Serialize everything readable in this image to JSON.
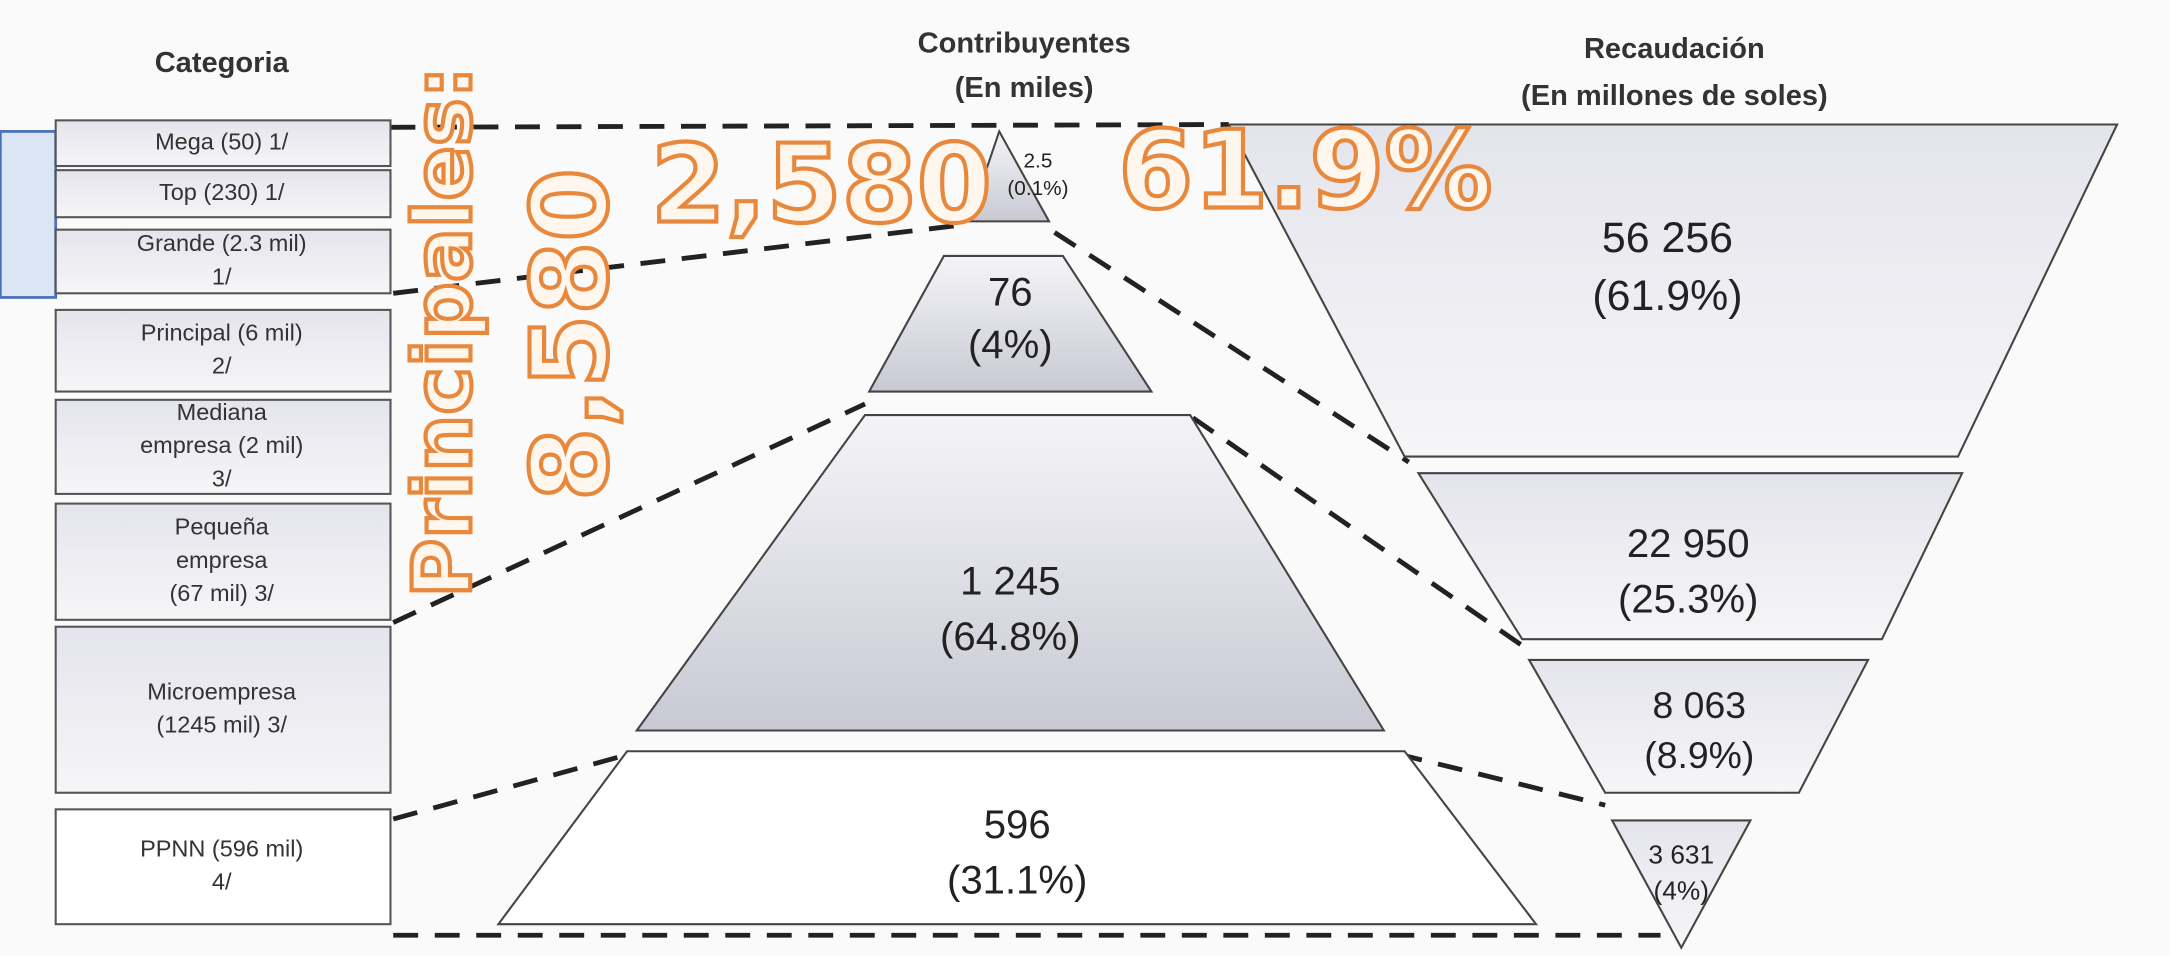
{
  "headers": {
    "category": "Categoria",
    "taxpayers": [
      "Contribuyentes",
      "(En miles)"
    ],
    "revenue": [
      "Recaudación",
      "(En millones de soles)"
    ]
  },
  "categories": [
    [
      "Mega (50) 1/"
    ],
    [
      "Top (230) 1/"
    ],
    [
      "Grande (2.3 mil)",
      "1/"
    ],
    [
      "Principal (6 mil)",
      "2/"
    ],
    [
      "Mediana",
      "empresa (2 mil)",
      "3/"
    ],
    [
      "Pequeña",
      "empresa",
      "(67 mil) 3/"
    ],
    [
      "Microempresa",
      "(1245 mil) 3/"
    ],
    [
      "PPNN  (596 mil)",
      "4/"
    ]
  ],
  "pyramid": [
    [
      "2.5",
      "(0.1%)"
    ],
    [
      "76",
      "(4%)"
    ],
    [
      "1 245",
      "(64.8%)"
    ],
    [
      "596",
      "(31.1%)"
    ]
  ],
  "funnel": [
    [
      "56 256",
      "(61.9%)"
    ],
    [
      "22 950",
      "(25.3%)"
    ],
    [
      "8 063",
      "(8.9%)"
    ],
    [
      "3 631",
      "(4%)"
    ]
  ],
  "overlays": {
    "taxpayers_total": "2,580",
    "revenue_share": "61.9%",
    "principales_label": "Principales:",
    "principales_total": "8,580"
  }
}
